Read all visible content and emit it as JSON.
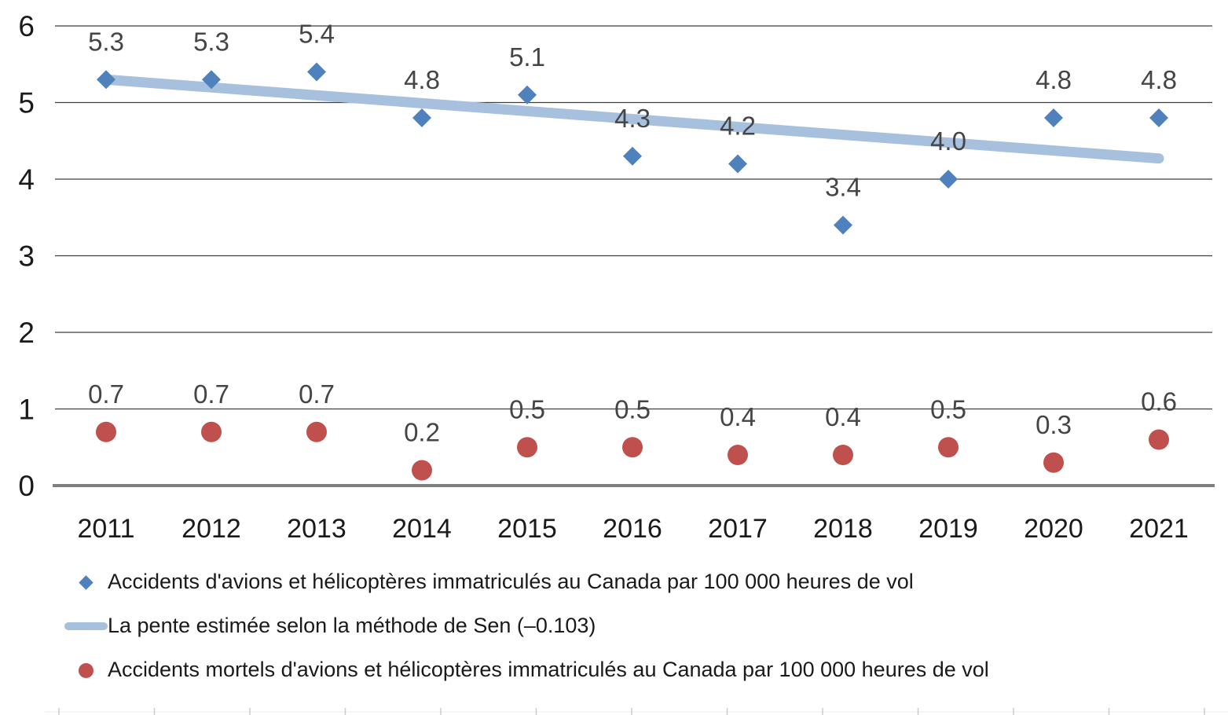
{
  "chart_data": {
    "type": "scatter",
    "categories": [
      "2011",
      "2012",
      "2013",
      "2014",
      "2015",
      "2016",
      "2017",
      "2018",
      "2019",
      "2020",
      "2021"
    ],
    "yticks": [
      "0",
      "1",
      "2",
      "3",
      "4",
      "5",
      "6"
    ],
    "ylim": [
      0,
      6
    ],
    "grid": "horizontal",
    "legend_position": "bottom-left",
    "series": [
      {
        "name": "Accidents d'avions et hélicoptères immatriculés au Canada par 100 000 heures de vol",
        "type": "scatter",
        "marker": "diamond",
        "color": "#4F81BD",
        "values": [
          5.3,
          5.3,
          5.4,
          4.8,
          5.1,
          4.3,
          4.2,
          3.4,
          4.0,
          4.8,
          4.8
        ],
        "labels": [
          "5.3",
          "5.3",
          "5.4",
          "4.8",
          "5.1",
          "4.3",
          "4.2",
          "3.4",
          "4.0",
          "4.8",
          "4.8"
        ]
      },
      {
        "name": "La pente estimée selon la méthode de Sen (–0.103)",
        "type": "trendline",
        "color": "#A6C0DE",
        "slope": -0.103,
        "x": [
          "2011",
          "2021"
        ],
        "y": [
          5.3,
          4.27
        ]
      },
      {
        "name": "Accidents mortels d'avions et hélicoptères immatriculés au Canada par 100 000 heures de vol",
        "type": "scatter",
        "marker": "circle",
        "color": "#C0504D",
        "values": [
          0.7,
          0.7,
          0.7,
          0.2,
          0.5,
          0.5,
          0.4,
          0.4,
          0.5,
          0.3,
          0.6
        ],
        "labels": [
          "0.7",
          "0.7",
          "0.7",
          "0.2",
          "0.5",
          "0.5",
          "0.4",
          "0.4",
          "0.5",
          "0.3",
          "0.6"
        ]
      }
    ],
    "colors": {
      "grid": "#3F3F3F",
      "axis": "#7F7F7F",
      "tick_label": "#1A1A1A",
      "data_label": "#454545",
      "ruler_line": "#ECECEC",
      "ruler_tick": "#C9CDD3"
    }
  }
}
